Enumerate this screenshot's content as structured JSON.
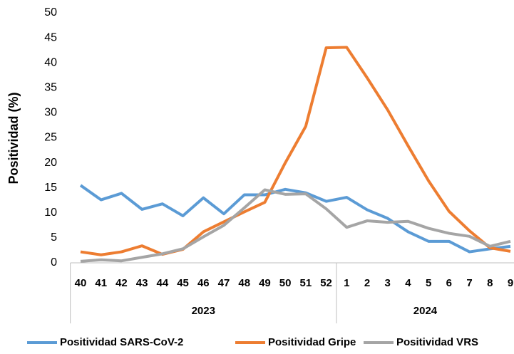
{
  "chart_data": {
    "type": "line",
    "y_label": "Positividad (%)",
    "category_groups": [
      {
        "label": "2023",
        "categories": [
          "40",
          "41",
          "42",
          "43",
          "44",
          "45",
          "46",
          "47",
          "48",
          "49",
          "50",
          "51",
          "52"
        ]
      },
      {
        "label": "2024",
        "categories": [
          "1",
          "2",
          "3",
          "4",
          "5",
          "6",
          "7",
          "8",
          "9"
        ]
      }
    ],
    "series": [
      {
        "name": "Positividad SARS-CoV-2",
        "color": "#5b9bd5",
        "values": [
          15.5,
          12.6,
          13.9,
          10.7,
          11.8,
          9.4,
          13.0,
          9.8,
          13.6,
          13.6,
          14.7,
          14.0,
          12.3,
          13.1,
          10.6,
          8.9,
          6.2,
          4.3,
          4.3,
          2.2,
          2.8,
          3.3
        ]
      },
      {
        "name": "Positividad Gripe",
        "color": "#ed7d31",
        "values": [
          2.2,
          1.6,
          2.2,
          3.4,
          1.7,
          2.7,
          6.2,
          8.2,
          10.2,
          12.1,
          20.0,
          27.3,
          43.0,
          43.1,
          37.0,
          30.6,
          23.4,
          16.4,
          10.3,
          6.4,
          3.0,
          2.3
        ]
      },
      {
        "name": "Positividad VRS",
        "color": "#a5a5a5",
        "values": [
          0.3,
          0.6,
          0.4,
          1.1,
          1.8,
          2.8,
          5.2,
          7.5,
          11.0,
          14.6,
          13.7,
          13.8,
          10.8,
          7.1,
          8.4,
          8.1,
          8.3,
          6.9,
          5.9,
          5.3,
          3.3,
          4.3
        ]
      }
    ],
    "ylim": [
      0,
      50
    ],
    "yticks": [
      0,
      5,
      10,
      15,
      20,
      25,
      30,
      35,
      40,
      45,
      50
    ],
    "grid": false,
    "legend": "bottom"
  }
}
